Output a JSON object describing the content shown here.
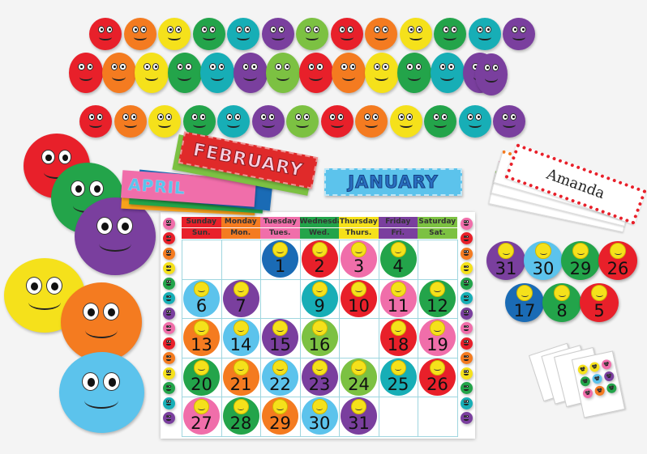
{
  "colors": {
    "red": "#e8202a",
    "orange": "#f47b20",
    "yellow": "#f5e11b",
    "green": "#23a44a",
    "teal": "#17aeb6",
    "purple": "#7a3f9e",
    "lightgreen": "#7cc142",
    "pink": "#f06eaa",
    "lightblue": "#5cc3ec",
    "blue": "#1a6bb5"
  },
  "header_strip": [
    "red",
    "orange",
    "yellow",
    "green",
    "teal",
    "purple",
    "lightgreen",
    "red",
    "orange",
    "yellow",
    "green",
    "teal",
    "purple"
  ],
  "big_faces": [
    "red",
    "green",
    "purple",
    "yellow",
    "orange",
    "lightblue"
  ],
  "month_cards": {
    "front": "FEBRUARY",
    "partial": "APRIL",
    "standalone": "JANUARY"
  },
  "calendar": {
    "days": [
      {
        "full": "Sunday",
        "short": "Sun.",
        "color": "red"
      },
      {
        "full": "Monday",
        "short": "Mon.",
        "color": "orange"
      },
      {
        "full": "Tuesday",
        "short": "Tues.",
        "color": "pink"
      },
      {
        "full": "Wednesday",
        "short": "Wed.",
        "color": "green"
      },
      {
        "full": "Thursday",
        "short": "Thurs.",
        "color": "yellow"
      },
      {
        "full": "Friday",
        "short": "Fri.",
        "color": "purple"
      },
      {
        "full": "Saturday",
        "short": "Sat.",
        "color": "lightgreen"
      }
    ],
    "weeks": [
      [
        null,
        null,
        {
          "n": "1",
          "c": "blue"
        },
        {
          "n": "2",
          "c": "red"
        },
        {
          "n": "3",
          "c": "pink"
        },
        {
          "n": "4",
          "c": "green"
        },
        null
      ],
      [
        {
          "n": "6",
          "c": "lightblue"
        },
        {
          "n": "7",
          "c": "purple"
        },
        null,
        {
          "n": "9",
          "c": "teal"
        },
        {
          "n": "10",
          "c": "red"
        },
        {
          "n": "11",
          "c": "pink"
        },
        {
          "n": "12",
          "c": "green"
        }
      ],
      [
        {
          "n": "13",
          "c": "orange"
        },
        {
          "n": "14",
          "c": "lightblue"
        },
        {
          "n": "15",
          "c": "purple"
        },
        {
          "n": "16",
          "c": "lightgreen"
        },
        null,
        {
          "n": "18",
          "c": "red"
        },
        {
          "n": "19",
          "c": "pink"
        }
      ],
      [
        {
          "n": "20",
          "c": "green"
        },
        {
          "n": "21",
          "c": "orange"
        },
        {
          "n": "22",
          "c": "lightblue"
        },
        {
          "n": "23",
          "c": "purple"
        },
        {
          "n": "24",
          "c": "lightgreen"
        },
        {
          "n": "25",
          "c": "teal"
        },
        {
          "n": "26",
          "c": "red"
        }
      ],
      [
        {
          "n": "27",
          "c": "pink"
        },
        {
          "n": "28",
          "c": "green"
        },
        {
          "n": "29",
          "c": "orange"
        },
        {
          "n": "30",
          "c": "lightblue"
        },
        {
          "n": "31",
          "c": "purple"
        },
        null,
        null
      ]
    ],
    "border_faces": [
      "pink",
      "red",
      "orange",
      "yellow",
      "green",
      "teal",
      "purple",
      "pink",
      "red",
      "orange",
      "yellow",
      "green",
      "teal",
      "purple"
    ]
  },
  "name_card": {
    "name": "Amanda"
  },
  "loose_dates": [
    {
      "n": "31",
      "c": "purple"
    },
    {
      "n": "30",
      "c": "lightblue"
    },
    {
      "n": "29",
      "c": "green"
    },
    {
      "n": "26",
      "c": "red"
    },
    {
      "n": "17",
      "c": "blue"
    },
    {
      "n": "8",
      "c": "green"
    },
    {
      "n": "5",
      "c": "red"
    }
  ]
}
